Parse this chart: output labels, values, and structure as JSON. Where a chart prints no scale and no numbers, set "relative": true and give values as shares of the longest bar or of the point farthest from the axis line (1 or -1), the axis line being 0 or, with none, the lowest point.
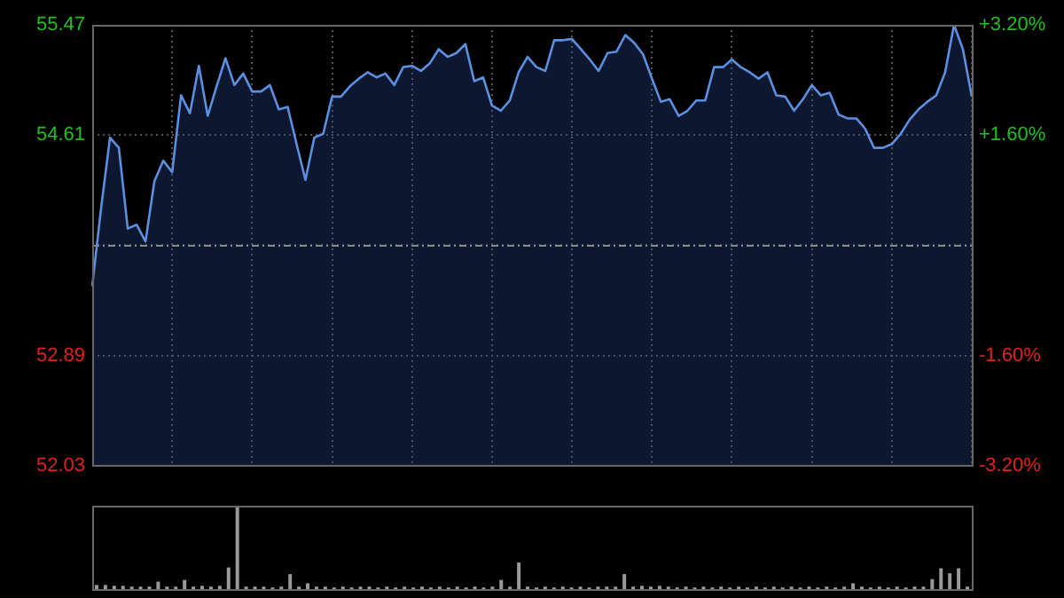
{
  "chart_data": [
    {
      "type": "area",
      "categories": [
        null,
        null,
        null,
        null,
        null,
        null,
        null,
        null,
        null,
        null,
        null,
        null,
        null,
        null,
        null,
        null,
        null,
        null,
        null,
        null,
        null,
        null,
        null,
        null,
        null,
        null,
        null,
        null,
        null,
        null,
        null,
        null,
        null,
        null,
        null,
        null,
        null,
        null,
        null,
        null,
        null,
        null,
        null,
        null,
        null,
        null,
        null,
        null,
        null,
        null,
        null,
        null,
        null,
        null,
        null,
        null,
        null,
        null,
        null,
        null,
        null,
        null,
        null,
        null,
        null,
        null,
        null,
        null,
        null,
        null,
        null,
        null,
        null,
        null,
        null,
        null,
        null,
        null,
        null,
        null,
        null,
        null,
        null,
        null,
        null,
        null,
        null,
        null,
        null,
        null,
        null,
        null,
        null,
        null,
        null,
        null,
        null,
        null,
        null,
        null
      ],
      "values": [
        53.43,
        54.04,
        54.59,
        54.51,
        53.88,
        53.91,
        53.78,
        54.25,
        54.41,
        54.32,
        54.92,
        54.78,
        55.15,
        54.76,
        54.99,
        55.21,
        55.0,
        55.09,
        54.95,
        54.95,
        55.0,
        54.81,
        54.83,
        54.54,
        54.26,
        54.59,
        54.62,
        54.91,
        54.91,
        54.99,
        55.05,
        55.1,
        55.06,
        55.09,
        55.0,
        55.14,
        55.15,
        55.11,
        55.17,
        55.28,
        55.22,
        55.25,
        55.32,
        55.03,
        55.06,
        54.84,
        54.8,
        54.88,
        55.1,
        55.22,
        55.14,
        55.11,
        55.35,
        55.35,
        55.36,
        55.28,
        55.2,
        55.11,
        55.25,
        55.26,
        55.39,
        55.33,
        55.24,
        55.05,
        54.87,
        54.89,
        54.76,
        54.8,
        54.88,
        54.88,
        55.14,
        55.14,
        55.2,
        55.14,
        55.1,
        55.05,
        55.1,
        54.92,
        54.91,
        54.8,
        54.89,
        55.0,
        54.92,
        54.94,
        54.77,
        54.74,
        54.74,
        54.66,
        54.51,
        54.51,
        54.54,
        54.62,
        54.73,
        54.81,
        54.87,
        54.92,
        55.1,
        55.47,
        55.28,
        54.91
      ],
      "color": "#5b8fe0",
      "ylim": [
        52.03,
        55.47
      ],
      "yticks": [
        55.47,
        54.61,
        {
          "value": 53.75,
          "label": null
        },
        52.89,
        52.03
      ],
      "y2lim": [
        -3.2,
        3.2
      ],
      "y2ticks": [
        {
          "value": 3.2,
          "label": "+3.20%"
        },
        {
          "value": 1.6,
          "label": "+1.60%"
        },
        {
          "value": 0,
          "label": null
        },
        {
          "value": -1.6,
          "label": "-1.60%"
        },
        {
          "value": -3.2,
          "label": "-3.20%"
        }
      ],
      "grid": true,
      "ref_lines": [
        {
          "axis": "y",
          "value": 53.75,
          "color": "#8a8a8a",
          "line_style": "dashed"
        }
      ]
    },
    {
      "type": "bar",
      "relative": true,
      "categories": [
        null,
        null,
        null,
        null,
        null,
        null,
        null,
        null,
        null,
        null,
        null,
        null,
        null,
        null,
        null,
        null,
        null,
        null,
        null,
        null,
        null,
        null,
        null,
        null,
        null,
        null,
        null,
        null,
        null,
        null,
        null,
        null,
        null,
        null,
        null,
        null,
        null,
        null,
        null,
        null,
        null,
        null,
        null,
        null,
        null,
        null,
        null,
        null,
        null,
        null,
        null,
        null,
        null,
        null,
        null,
        null,
        null,
        null,
        null,
        null,
        null,
        null,
        null,
        null,
        null,
        null,
        null,
        null,
        null,
        null,
        null,
        null,
        null,
        null,
        null,
        null,
        null,
        null,
        null,
        null,
        null,
        null,
        null,
        null,
        null,
        null,
        null,
        null,
        null,
        null,
        null,
        null,
        null,
        null,
        null,
        null,
        null,
        null,
        null,
        null
      ],
      "values": [
        0.05,
        0.05,
        0.04,
        0.04,
        0.03,
        0.03,
        0.03,
        0.09,
        0.03,
        0.03,
        0.11,
        0.03,
        0.04,
        0.03,
        0.04,
        0.26,
        1,
        0.03,
        0.03,
        0.03,
        0.02,
        0.03,
        0.18,
        0.03,
        0.07,
        0.03,
        0.03,
        0.02,
        0.03,
        0.02,
        0.03,
        0.03,
        0.02,
        0.03,
        0.02,
        0.03,
        0.02,
        0.03,
        0.02,
        0.03,
        0.02,
        0.03,
        0.02,
        0.03,
        0.02,
        0.03,
        0.11,
        0.03,
        0.32,
        0.03,
        0.02,
        0.03,
        0.02,
        0.03,
        0.02,
        0.03,
        0.02,
        0.03,
        0.03,
        0.03,
        0.18,
        0.03,
        0.04,
        0.03,
        0.04,
        0.03,
        0.02,
        0.03,
        0.02,
        0.03,
        0.02,
        0.03,
        0.02,
        0.03,
        0.02,
        0.03,
        0.02,
        0.03,
        0.02,
        0.03,
        0.02,
        0.03,
        0.02,
        0.03,
        0.02,
        0.03,
        0.07,
        0.03,
        0.02,
        0.03,
        0.02,
        0.03,
        0.02,
        0.03,
        0.03,
        0.12,
        0.25,
        0.19,
        0.25,
        0.03
      ],
      "color": "#9a9a9a"
    }
  ]
}
